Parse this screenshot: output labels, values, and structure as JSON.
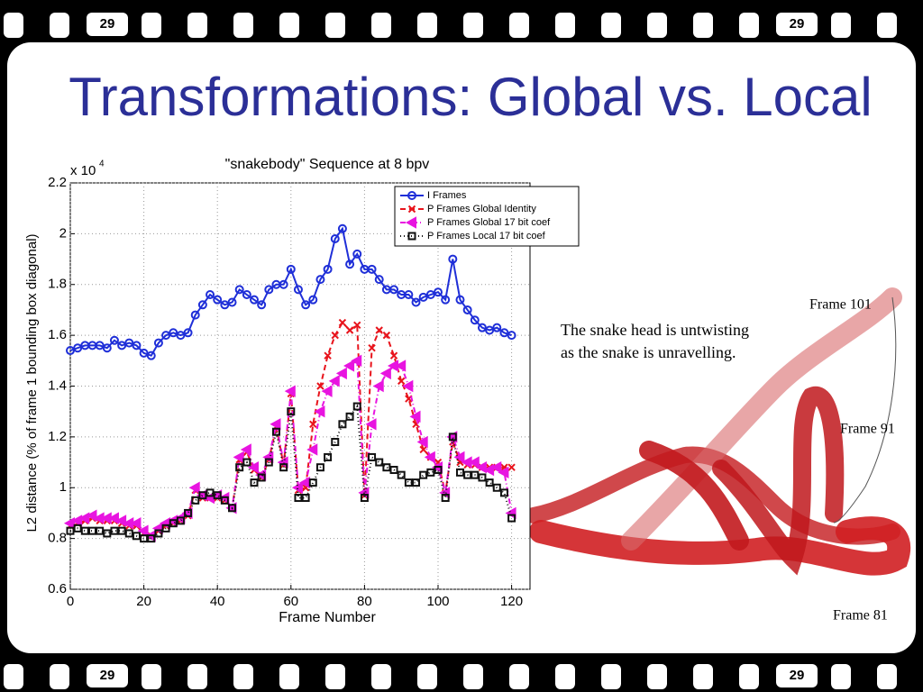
{
  "slide": {
    "title": "Transformations: Global vs. Local",
    "page_number": "29",
    "caption": [
      "The snake head is untwisting",
      "as the snake is unravelling."
    ],
    "frame_labels": [
      "Frame 101",
      "Frame 91",
      "Frame 81"
    ]
  },
  "chart_data": {
    "type": "line",
    "title": "\"snakebody\" Sequence at 8 bpv",
    "xlabel": "Frame Number",
    "ylabel": "L2 distance (% of frame 1 bounding box diagonal)",
    "y_multiplier": {
      "base": "x 10",
      "exponent": "4"
    },
    "xlim": [
      0,
      125
    ],
    "ylim": [
      0.6,
      2.2
    ],
    "xticks": [
      0,
      20,
      40,
      60,
      80,
      100,
      120
    ],
    "yticks": [
      0.6,
      0.8,
      1,
      1.2,
      1.4,
      1.6,
      1.8,
      2,
      2.2
    ],
    "grid": true,
    "legend": "upper right",
    "x": [
      0,
      2,
      4,
      6,
      8,
      10,
      12,
      14,
      16,
      18,
      20,
      22,
      24,
      26,
      28,
      30,
      32,
      34,
      36,
      38,
      40,
      42,
      44,
      46,
      48,
      50,
      52,
      54,
      56,
      58,
      60,
      62,
      64,
      66,
      68,
      70,
      72,
      74,
      76,
      78,
      80,
      82,
      84,
      86,
      88,
      90,
      92,
      94,
      96,
      98,
      100,
      102,
      104,
      106,
      108,
      110,
      112,
      114,
      116,
      118,
      120
    ],
    "series": [
      {
        "name": "I  Frames",
        "color": "#1f2fd8",
        "marker": "o",
        "linestyle": "solid",
        "values": [
          1.54,
          1.55,
          1.56,
          1.56,
          1.56,
          1.55,
          1.58,
          1.56,
          1.57,
          1.56,
          1.53,
          1.52,
          1.57,
          1.6,
          1.61,
          1.6,
          1.61,
          1.68,
          1.72,
          1.76,
          1.74,
          1.72,
          1.73,
          1.78,
          1.76,
          1.74,
          1.72,
          1.78,
          1.8,
          1.8,
          1.86,
          1.78,
          1.72,
          1.74,
          1.82,
          1.86,
          1.98,
          2.02,
          1.88,
          1.92,
          1.86,
          1.86,
          1.82,
          1.78,
          1.78,
          1.76,
          1.76,
          1.73,
          1.75,
          1.76,
          1.77,
          1.74,
          1.9,
          1.74,
          1.7,
          1.66,
          1.63,
          1.62,
          1.63,
          1.61,
          1.6
        ]
      },
      {
        "name": "P  Frames Global Identity",
        "color": "#e8141c",
        "marker": "x",
        "linestyle": "dashed",
        "values": [
          0.85,
          0.86,
          0.87,
          0.88,
          0.87,
          0.87,
          0.87,
          0.86,
          0.85,
          0.85,
          0.82,
          0.81,
          0.83,
          0.85,
          0.86,
          0.87,
          0.89,
          0.99,
          0.96,
          0.96,
          0.96,
          0.95,
          0.92,
          1.11,
          1.14,
          1.07,
          1.04,
          1.11,
          1.24,
          1.09,
          1.37,
          0.99,
          1.0,
          1.25,
          1.4,
          1.52,
          1.6,
          1.65,
          1.62,
          1.64,
          0.97,
          1.55,
          1.62,
          1.6,
          1.52,
          1.42,
          1.35,
          1.25,
          1.15,
          1.12,
          1.1,
          0.98,
          1.18,
          1.1,
          1.09,
          1.09,
          1.08,
          1.08,
          1.08,
          1.08,
          1.08
        ]
      },
      {
        "name": "P  Frames Global 17 bit coef",
        "color": "#e814e0",
        "marker": "<",
        "linestyle": "dashdot",
        "values": [
          0.86,
          0.87,
          0.88,
          0.89,
          0.88,
          0.88,
          0.88,
          0.87,
          0.86,
          0.86,
          0.83,
          0.81,
          0.84,
          0.86,
          0.87,
          0.88,
          0.9,
          1.0,
          0.97,
          0.96,
          0.97,
          0.96,
          0.92,
          1.12,
          1.15,
          1.08,
          1.05,
          1.12,
          1.25,
          1.1,
          1.38,
          1.0,
          1.02,
          1.15,
          1.3,
          1.38,
          1.42,
          1.45,
          1.48,
          1.5,
          0.98,
          1.25,
          1.4,
          1.45,
          1.48,
          1.48,
          1.4,
          1.28,
          1.18,
          1.12,
          1.08,
          0.98,
          1.2,
          1.12,
          1.1,
          1.1,
          1.08,
          1.07,
          1.08,
          1.06,
          0.9
        ]
      },
      {
        "name": "P  Frames Local 17 bit coef",
        "color": "#111111",
        "marker": "s",
        "linestyle": "dotted",
        "values": [
          0.83,
          0.84,
          0.83,
          0.83,
          0.83,
          0.82,
          0.83,
          0.83,
          0.82,
          0.81,
          0.8,
          0.8,
          0.82,
          0.84,
          0.86,
          0.87,
          0.9,
          0.95,
          0.97,
          0.98,
          0.97,
          0.95,
          0.92,
          1.08,
          1.1,
          1.02,
          1.04,
          1.1,
          1.22,
          1.08,
          1.3,
          0.96,
          0.96,
          1.02,
          1.08,
          1.12,
          1.18,
          1.25,
          1.28,
          1.32,
          0.96,
          1.12,
          1.1,
          1.08,
          1.07,
          1.05,
          1.02,
          1.02,
          1.05,
          1.06,
          1.07,
          0.96,
          1.2,
          1.06,
          1.05,
          1.05,
          1.04,
          1.02,
          1.0,
          0.98,
          0.88
        ]
      }
    ]
  }
}
